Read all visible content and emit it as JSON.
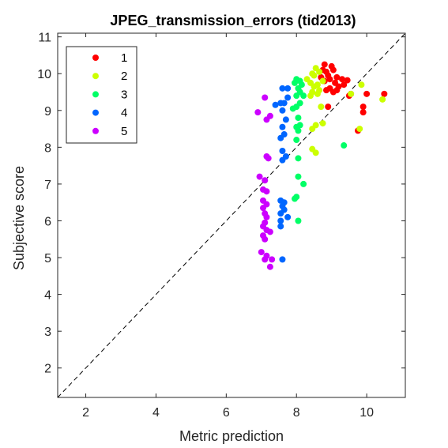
{
  "chart_data": {
    "type": "scatter",
    "title": "JPEG_transmission_errors (tid2013)",
    "xlabel": "Metric prediction",
    "ylabel": "Subjective score",
    "xlim": [
      1.2,
      11.1
    ],
    "ylim": [
      1.2,
      11.1
    ],
    "xticks": [
      "2",
      "4",
      "6",
      "8",
      "10"
    ],
    "yticks": [
      "2",
      "3",
      "4",
      "5",
      "6",
      "7",
      "8",
      "9",
      "10",
      "11"
    ],
    "grid": false,
    "diagonal_reference_line": "dashed",
    "legend_position": "top-left",
    "series": [
      {
        "name": "1",
        "color": "#ff0000",
        "points": [
          [
            8.8,
            10.25
          ],
          [
            9.0,
            10.2
          ],
          [
            8.75,
            10.1
          ],
          [
            8.85,
            10.05
          ],
          [
            9.05,
            10.1
          ],
          [
            8.9,
            9.95
          ],
          [
            9.15,
            9.9
          ],
          [
            8.95,
            9.85
          ],
          [
            9.3,
            9.85
          ],
          [
            9.45,
            9.82
          ],
          [
            8.8,
            9.8
          ],
          [
            8.7,
            9.9
          ],
          [
            9.1,
            9.75
          ],
          [
            9.35,
            9.7
          ],
          [
            9.2,
            9.65
          ],
          [
            8.95,
            9.6
          ],
          [
            9.15,
            9.55
          ],
          [
            9.05,
            9.5
          ],
          [
            8.85,
            9.55
          ],
          [
            9.55,
            9.45
          ],
          [
            10.5,
            9.45
          ],
          [
            10.0,
            9.45
          ],
          [
            9.5,
            9.4
          ],
          [
            9.9,
            9.1
          ],
          [
            9.9,
            8.95
          ],
          [
            8.9,
            9.1
          ],
          [
            9.75,
            8.45
          ]
        ]
      },
      {
        "name": "2",
        "color": "#ccff00",
        "points": [
          [
            8.55,
            10.15
          ],
          [
            8.65,
            10.05
          ],
          [
            8.45,
            10.0
          ],
          [
            8.5,
            9.95
          ],
          [
            8.3,
            9.85
          ],
          [
            8.75,
            9.8
          ],
          [
            8.4,
            9.75
          ],
          [
            8.6,
            9.7
          ],
          [
            8.5,
            9.65
          ],
          [
            8.65,
            9.55
          ],
          [
            8.45,
            9.5
          ],
          [
            8.6,
            9.45
          ],
          [
            8.4,
            9.4
          ],
          [
            9.55,
            9.45
          ],
          [
            9.85,
            9.7
          ],
          [
            10.45,
            9.3
          ],
          [
            8.7,
            9.1
          ],
          [
            8.75,
            8.65
          ],
          [
            8.55,
            8.6
          ],
          [
            8.45,
            8.5
          ],
          [
            9.8,
            8.5
          ],
          [
            8.45,
            7.95
          ],
          [
            8.55,
            7.85
          ]
        ]
      },
      {
        "name": "3",
        "color": "#00ff66",
        "points": [
          [
            8.0,
            9.85
          ],
          [
            8.1,
            9.8
          ],
          [
            7.95,
            9.75
          ],
          [
            8.15,
            9.7
          ],
          [
            8.05,
            9.6
          ],
          [
            8.1,
            9.5
          ],
          [
            8.0,
            9.4
          ],
          [
            8.2,
            9.4
          ],
          [
            8.1,
            9.2
          ],
          [
            8.0,
            9.1
          ],
          [
            7.9,
            9.05
          ],
          [
            8.05,
            8.8
          ],
          [
            8.1,
            8.6
          ],
          [
            8.0,
            8.55
          ],
          [
            8.05,
            8.45
          ],
          [
            8.0,
            8.2
          ],
          [
            9.35,
            8.05
          ],
          [
            8.05,
            7.7
          ],
          [
            8.05,
            7.2
          ],
          [
            8.2,
            7.0
          ],
          [
            8.0,
            6.65
          ],
          [
            7.95,
            6.6
          ],
          [
            8.05,
            6.0
          ]
        ]
      },
      {
        "name": "4",
        "color": "#0066ff",
        "points": [
          [
            7.6,
            9.6
          ],
          [
            7.75,
            9.6
          ],
          [
            7.75,
            9.35
          ],
          [
            7.65,
            9.2
          ],
          [
            7.55,
            9.2
          ],
          [
            7.4,
            9.15
          ],
          [
            7.6,
            9.0
          ],
          [
            7.7,
            8.75
          ],
          [
            7.6,
            8.55
          ],
          [
            7.65,
            8.35
          ],
          [
            7.55,
            8.25
          ],
          [
            7.6,
            7.9
          ],
          [
            7.7,
            7.75
          ],
          [
            7.6,
            7.65
          ],
          [
            7.55,
            6.55
          ],
          [
            7.65,
            6.5
          ],
          [
            7.6,
            6.4
          ],
          [
            7.65,
            6.3
          ],
          [
            7.55,
            6.2
          ],
          [
            7.75,
            6.1
          ],
          [
            7.55,
            6.0
          ],
          [
            7.55,
            5.85
          ],
          [
            7.6,
            4.95
          ]
        ]
      },
      {
        "name": "5",
        "color": "#cc00ff",
        "points": [
          [
            7.1,
            9.35
          ],
          [
            6.9,
            8.95
          ],
          [
            7.25,
            8.85
          ],
          [
            7.15,
            8.75
          ],
          [
            7.15,
            7.75
          ],
          [
            7.2,
            7.7
          ],
          [
            6.95,
            7.2
          ],
          [
            7.1,
            7.1
          ],
          [
            7.05,
            6.85
          ],
          [
            7.15,
            6.8
          ],
          [
            7.05,
            6.55
          ],
          [
            7.15,
            6.45
          ],
          [
            7.05,
            6.35
          ],
          [
            7.1,
            6.2
          ],
          [
            7.15,
            6.1
          ],
          [
            7.1,
            5.95
          ],
          [
            7.05,
            5.85
          ],
          [
            7.15,
            5.75
          ],
          [
            7.25,
            5.7
          ],
          [
            7.05,
            5.6
          ],
          [
            7.1,
            5.5
          ],
          [
            7.0,
            5.15
          ],
          [
            7.15,
            5.05
          ],
          [
            7.3,
            4.95
          ],
          [
            7.1,
            4.95
          ],
          [
            7.25,
            4.75
          ]
        ]
      }
    ]
  }
}
